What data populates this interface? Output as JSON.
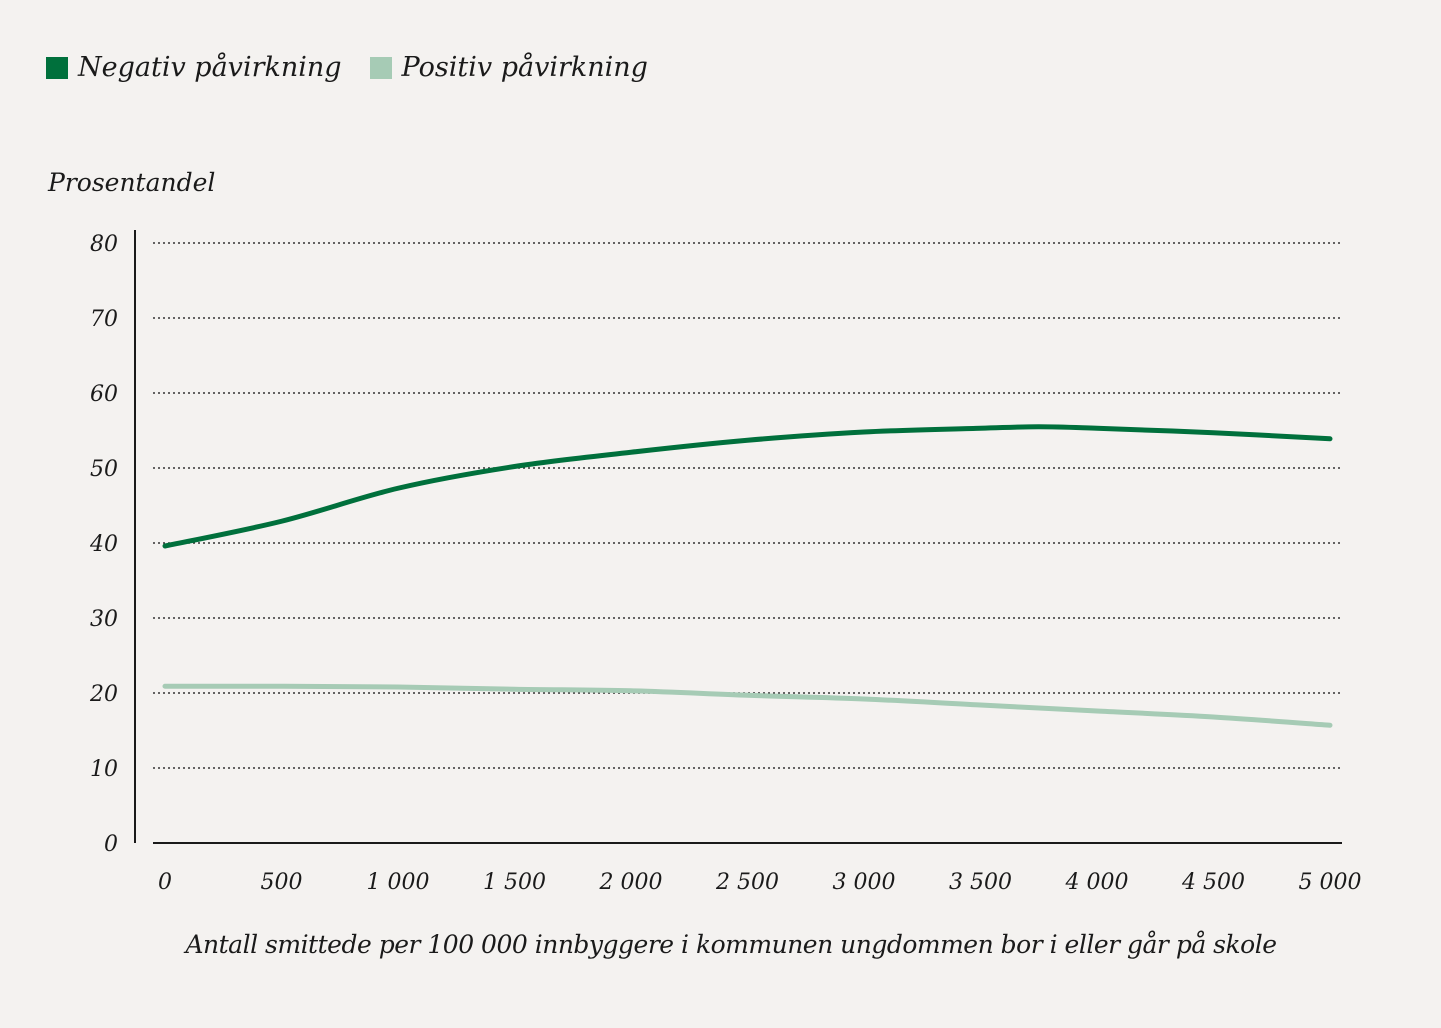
{
  "chart_data": {
    "type": "line",
    "title": "",
    "ylabel": "Prosentandel",
    "xlabel": "Antall smittede per 100 000 innbyggere i kommunen ungdommen bor i eller går på skole",
    "xlim": [
      0,
      5000
    ],
    "ylim": [
      0,
      80
    ],
    "grid": true,
    "legend_position": "top-left",
    "x_ticks": [
      0,
      500,
      1000,
      1500,
      2000,
      2500,
      3000,
      3500,
      4000,
      4500,
      5000
    ],
    "x_tick_labels": [
      "0",
      "500",
      "1 000",
      "1 500",
      "2 000",
      "2 500",
      "3 000",
      "3 500",
      "4 000",
      "4 500",
      "5 000"
    ],
    "y_ticks": [
      0,
      10,
      20,
      30,
      40,
      50,
      60,
      70,
      80
    ],
    "y_tick_labels": [
      "0",
      "10",
      "20",
      "30",
      "40",
      "50",
      "60",
      "70",
      "80"
    ],
    "x": [
      0,
      500,
      1000,
      1500,
      2000,
      2500,
      3000,
      3500,
      3750,
      4000,
      4500,
      5000
    ],
    "series": [
      {
        "name": "Negativ påvirkning",
        "color": "#00703c",
        "values": [
          39.6,
          42.9,
          47.3,
          50.2,
          52.1,
          53.7,
          54.8,
          55.3,
          55.5,
          55.3,
          54.7,
          53.9
        ]
      },
      {
        "name": "Positiv påvirkning",
        "color": "#a6cbb5",
        "values": [
          20.9,
          20.9,
          20.8,
          20.5,
          20.3,
          19.7,
          19.2,
          18.4,
          18.0,
          17.6,
          16.8,
          15.7
        ]
      }
    ]
  }
}
